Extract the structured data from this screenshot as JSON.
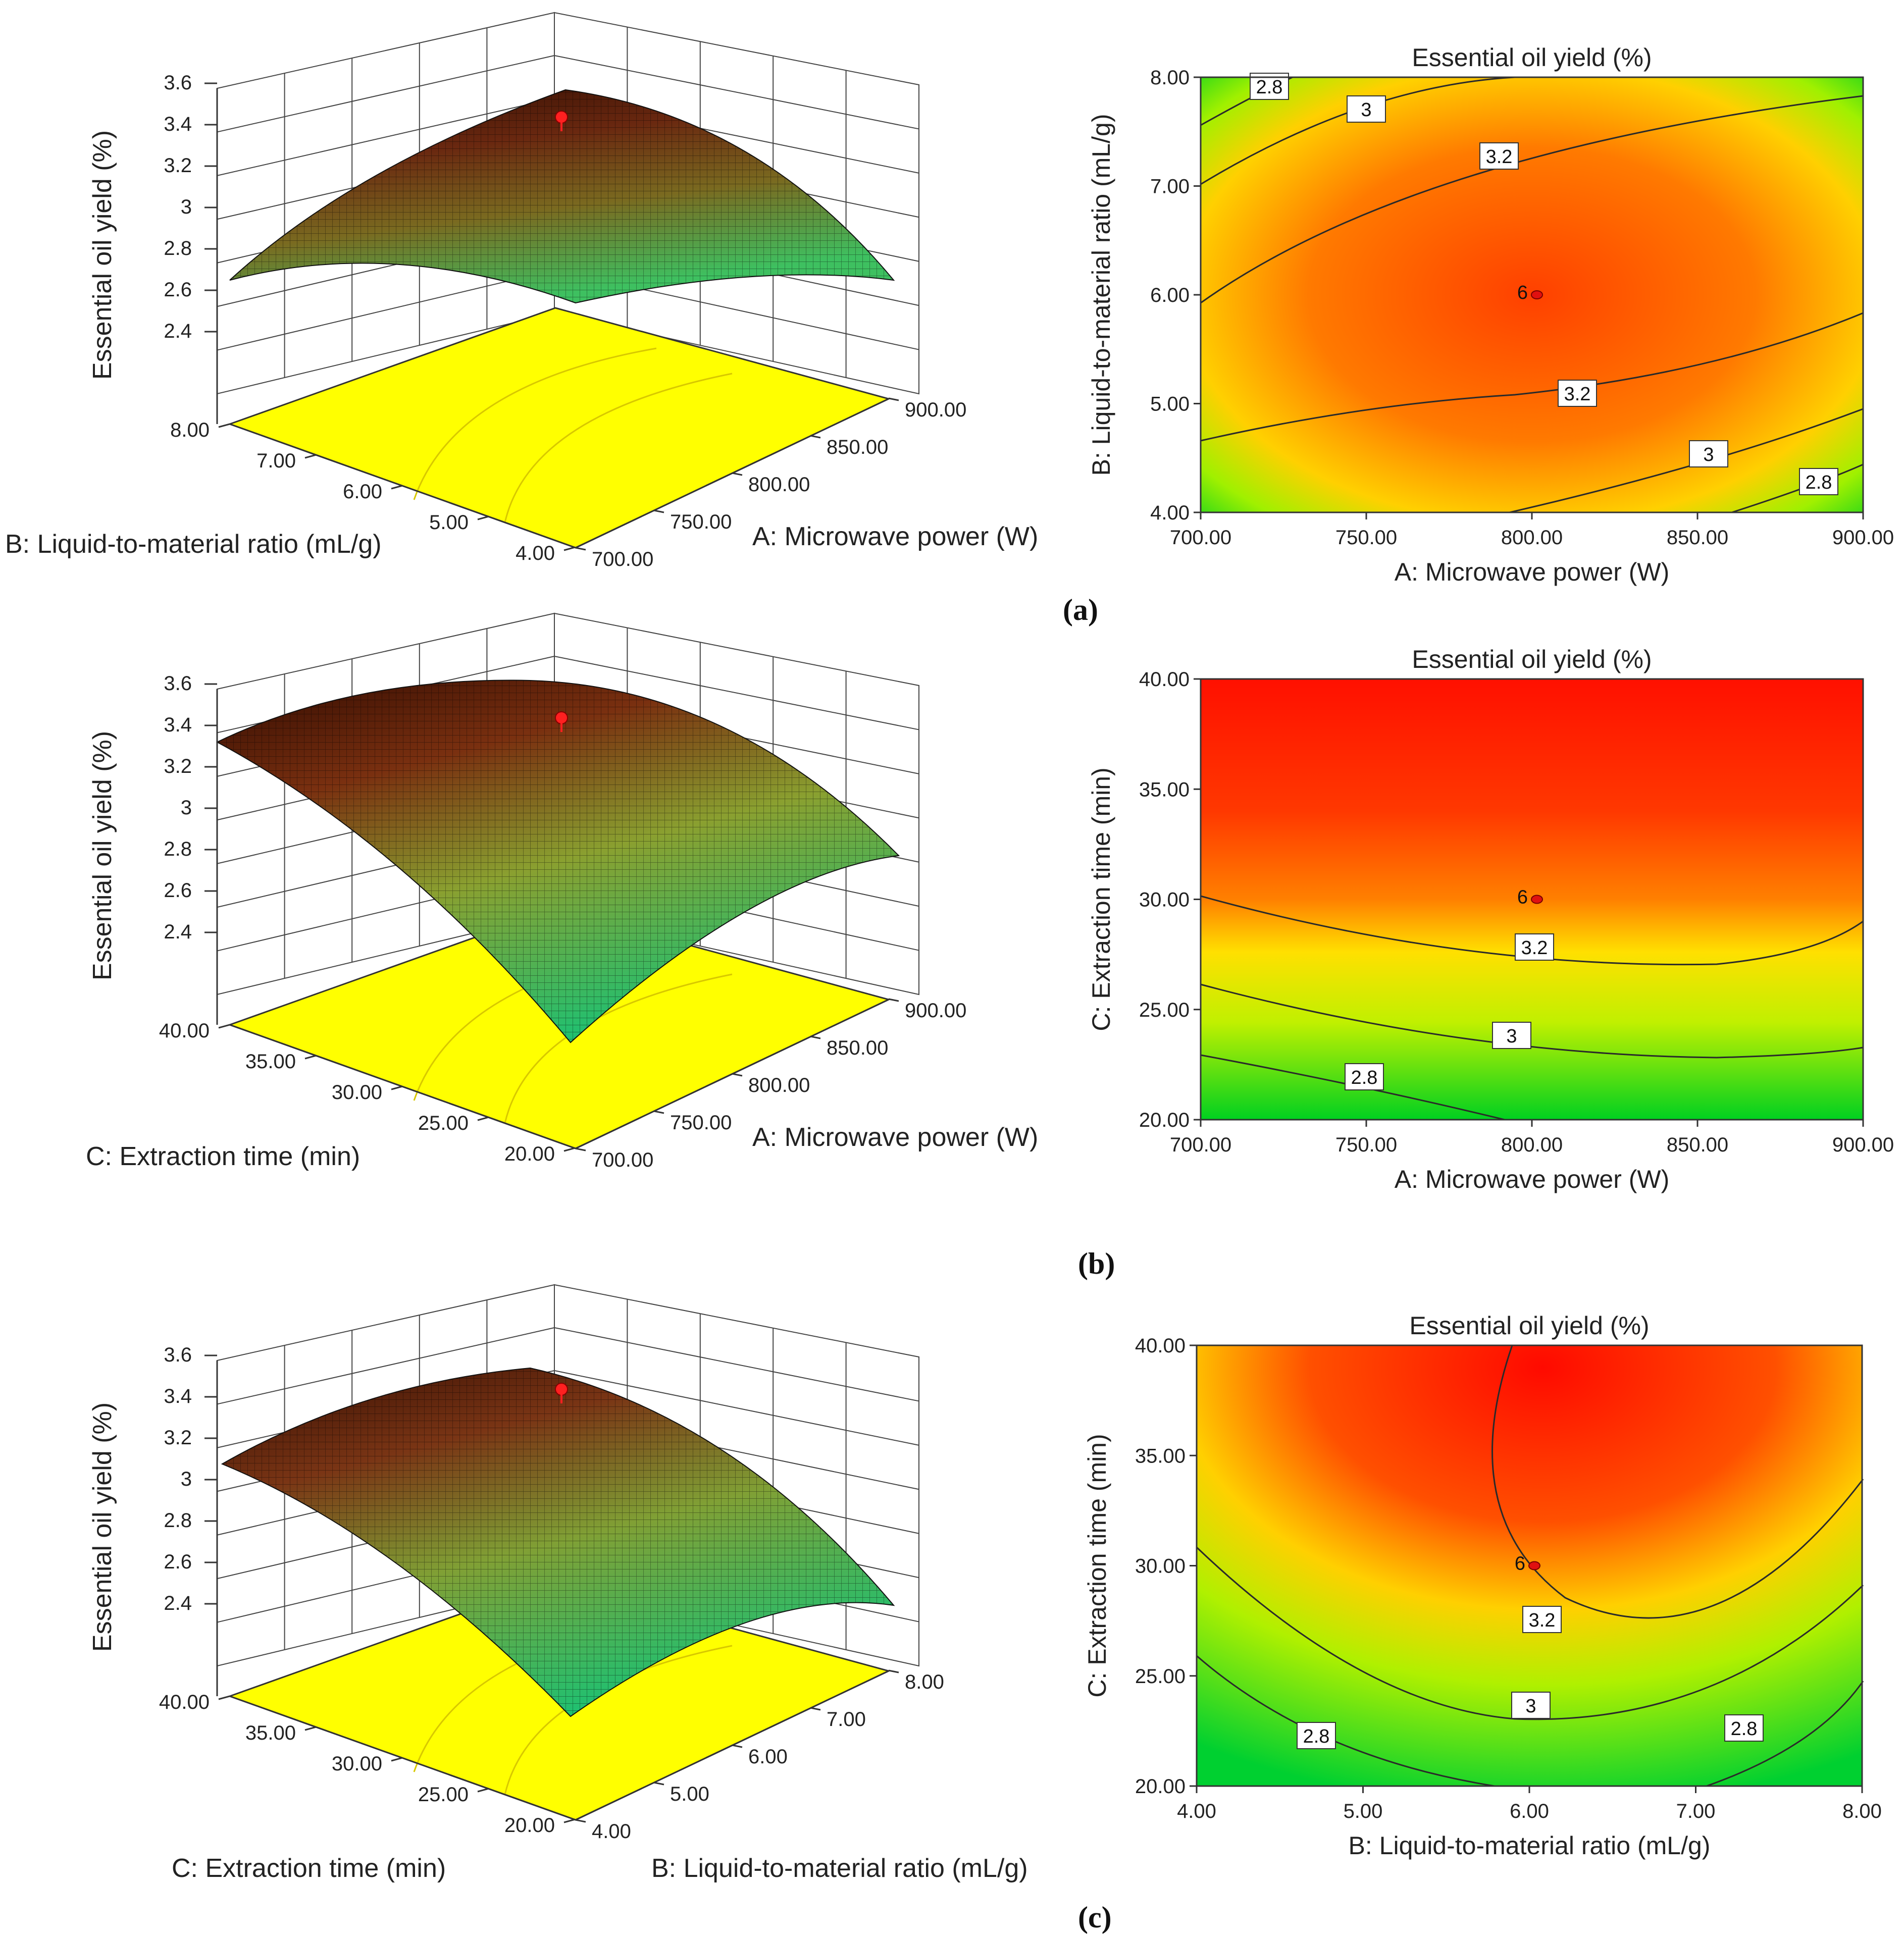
{
  "colors": {
    "low": "#00d020",
    "mid": "#ffff00",
    "high": "#ff0000",
    "floor": "#ffff00"
  },
  "chart_data": [
    {
      "type": "surface",
      "panel": "(a)",
      "zlabel": "Essential oil yield (%)",
      "xlabel": "B: Liquid-to-material ratio (mL/g)",
      "ylabel": "A: Microwave power (W)",
      "z_ticks": [
        "3.6",
        "3.4",
        "3.2",
        "3",
        "2.8",
        "2.6",
        "2.4"
      ],
      "x_ticks": [
        "8.00",
        "7.00",
        "6.00",
        "5.00",
        "4.00"
      ],
      "y_ticks": [
        "700.00",
        "750.00",
        "800.00",
        "850.00",
        "900.00"
      ],
      "zlim": [
        2.4,
        3.6
      ],
      "optimum_point": {
        "A": 800,
        "B": 6,
        "yield": 3.45
      }
    },
    {
      "type": "contour",
      "panel": "(a)",
      "title": "Essential oil yield (%)",
      "xlabel": "A: Microwave power (W)",
      "ylabel": "B: Liquid-to-material ratio (mL/g)",
      "x_ticks": [
        "700.00",
        "750.00",
        "800.00",
        "850.00",
        "900.00"
      ],
      "y_ticks": [
        "4.00",
        "5.00",
        "6.00",
        "7.00",
        "8.00"
      ],
      "xlim": [
        700,
        900
      ],
      "ylim": [
        4,
        8
      ],
      "contour_levels": [
        "2.8",
        "3",
        "3.2",
        "3.2",
        "3",
        "2.8"
      ],
      "center_point": {
        "x": 800,
        "y": 6,
        "label": "6"
      }
    },
    {
      "type": "surface",
      "panel": "(b)",
      "zlabel": "Essential oil yield (%)",
      "xlabel": "C: Extraction time (min)",
      "ylabel": "A: Microwave power (W)",
      "z_ticks": [
        "3.6",
        "3.4",
        "3.2",
        "3",
        "2.8",
        "2.6",
        "2.4"
      ],
      "x_ticks": [
        "40.00",
        "35.00",
        "30.00",
        "25.00",
        "20.00"
      ],
      "y_ticks": [
        "700.00",
        "750.00",
        "800.00",
        "850.00",
        "900.00"
      ],
      "zlim": [
        2.4,
        3.6
      ],
      "optimum_point": {
        "A": 800,
        "C": 30,
        "yield": 3.45
      }
    },
    {
      "type": "contour",
      "panel": "(b)",
      "title": "Essential oil yield (%)",
      "xlabel": "A: Microwave power (W)",
      "ylabel": "C: Extraction time (min)",
      "x_ticks": [
        "700.00",
        "750.00",
        "800.00",
        "850.00",
        "900.00"
      ],
      "y_ticks": [
        "20.00",
        "25.00",
        "30.00",
        "35.00",
        "40.00"
      ],
      "xlim": [
        700,
        900
      ],
      "ylim": [
        20,
        40
      ],
      "contour_levels": [
        "3.2",
        "3",
        "2.8"
      ],
      "center_point": {
        "x": 800,
        "y": 30,
        "label": "6"
      }
    },
    {
      "type": "surface",
      "panel": "(c)",
      "zlabel": "Essential oil yield (%)",
      "xlabel": "C: Extraction time (min)",
      "ylabel": "B: Liquid-to-material ratio (mL/g)",
      "z_ticks": [
        "3.6",
        "3.4",
        "3.2",
        "3",
        "2.8",
        "2.6",
        "2.4"
      ],
      "x_ticks": [
        "40.00",
        "35.00",
        "30.00",
        "25.00",
        "20.00"
      ],
      "y_ticks": [
        "4.00",
        "5.00",
        "6.00",
        "7.00",
        "8.00"
      ],
      "zlim": [
        2.4,
        3.6
      ],
      "optimum_point": {
        "B": 6,
        "C": 30,
        "yield": 3.45
      }
    },
    {
      "type": "contour",
      "panel": "(c)",
      "title": "Essential oil yield (%)",
      "xlabel": "B: Liquid-to-material ratio (mL/g)",
      "ylabel": "C: Extraction time (min)",
      "x_ticks": [
        "4.00",
        "5.00",
        "6.00",
        "7.00",
        "8.00"
      ],
      "y_ticks": [
        "20.00",
        "25.00",
        "30.00",
        "35.00",
        "40.00"
      ],
      "xlim": [
        4,
        8
      ],
      "ylim": [
        20,
        40
      ],
      "contour_levels": [
        "3.2",
        "3",
        "2.8",
        "2.8"
      ],
      "center_point": {
        "x": 6,
        "y": 30,
        "label": "6"
      }
    }
  ],
  "panel_labels": [
    "(a)",
    "(b)",
    "(c)"
  ]
}
